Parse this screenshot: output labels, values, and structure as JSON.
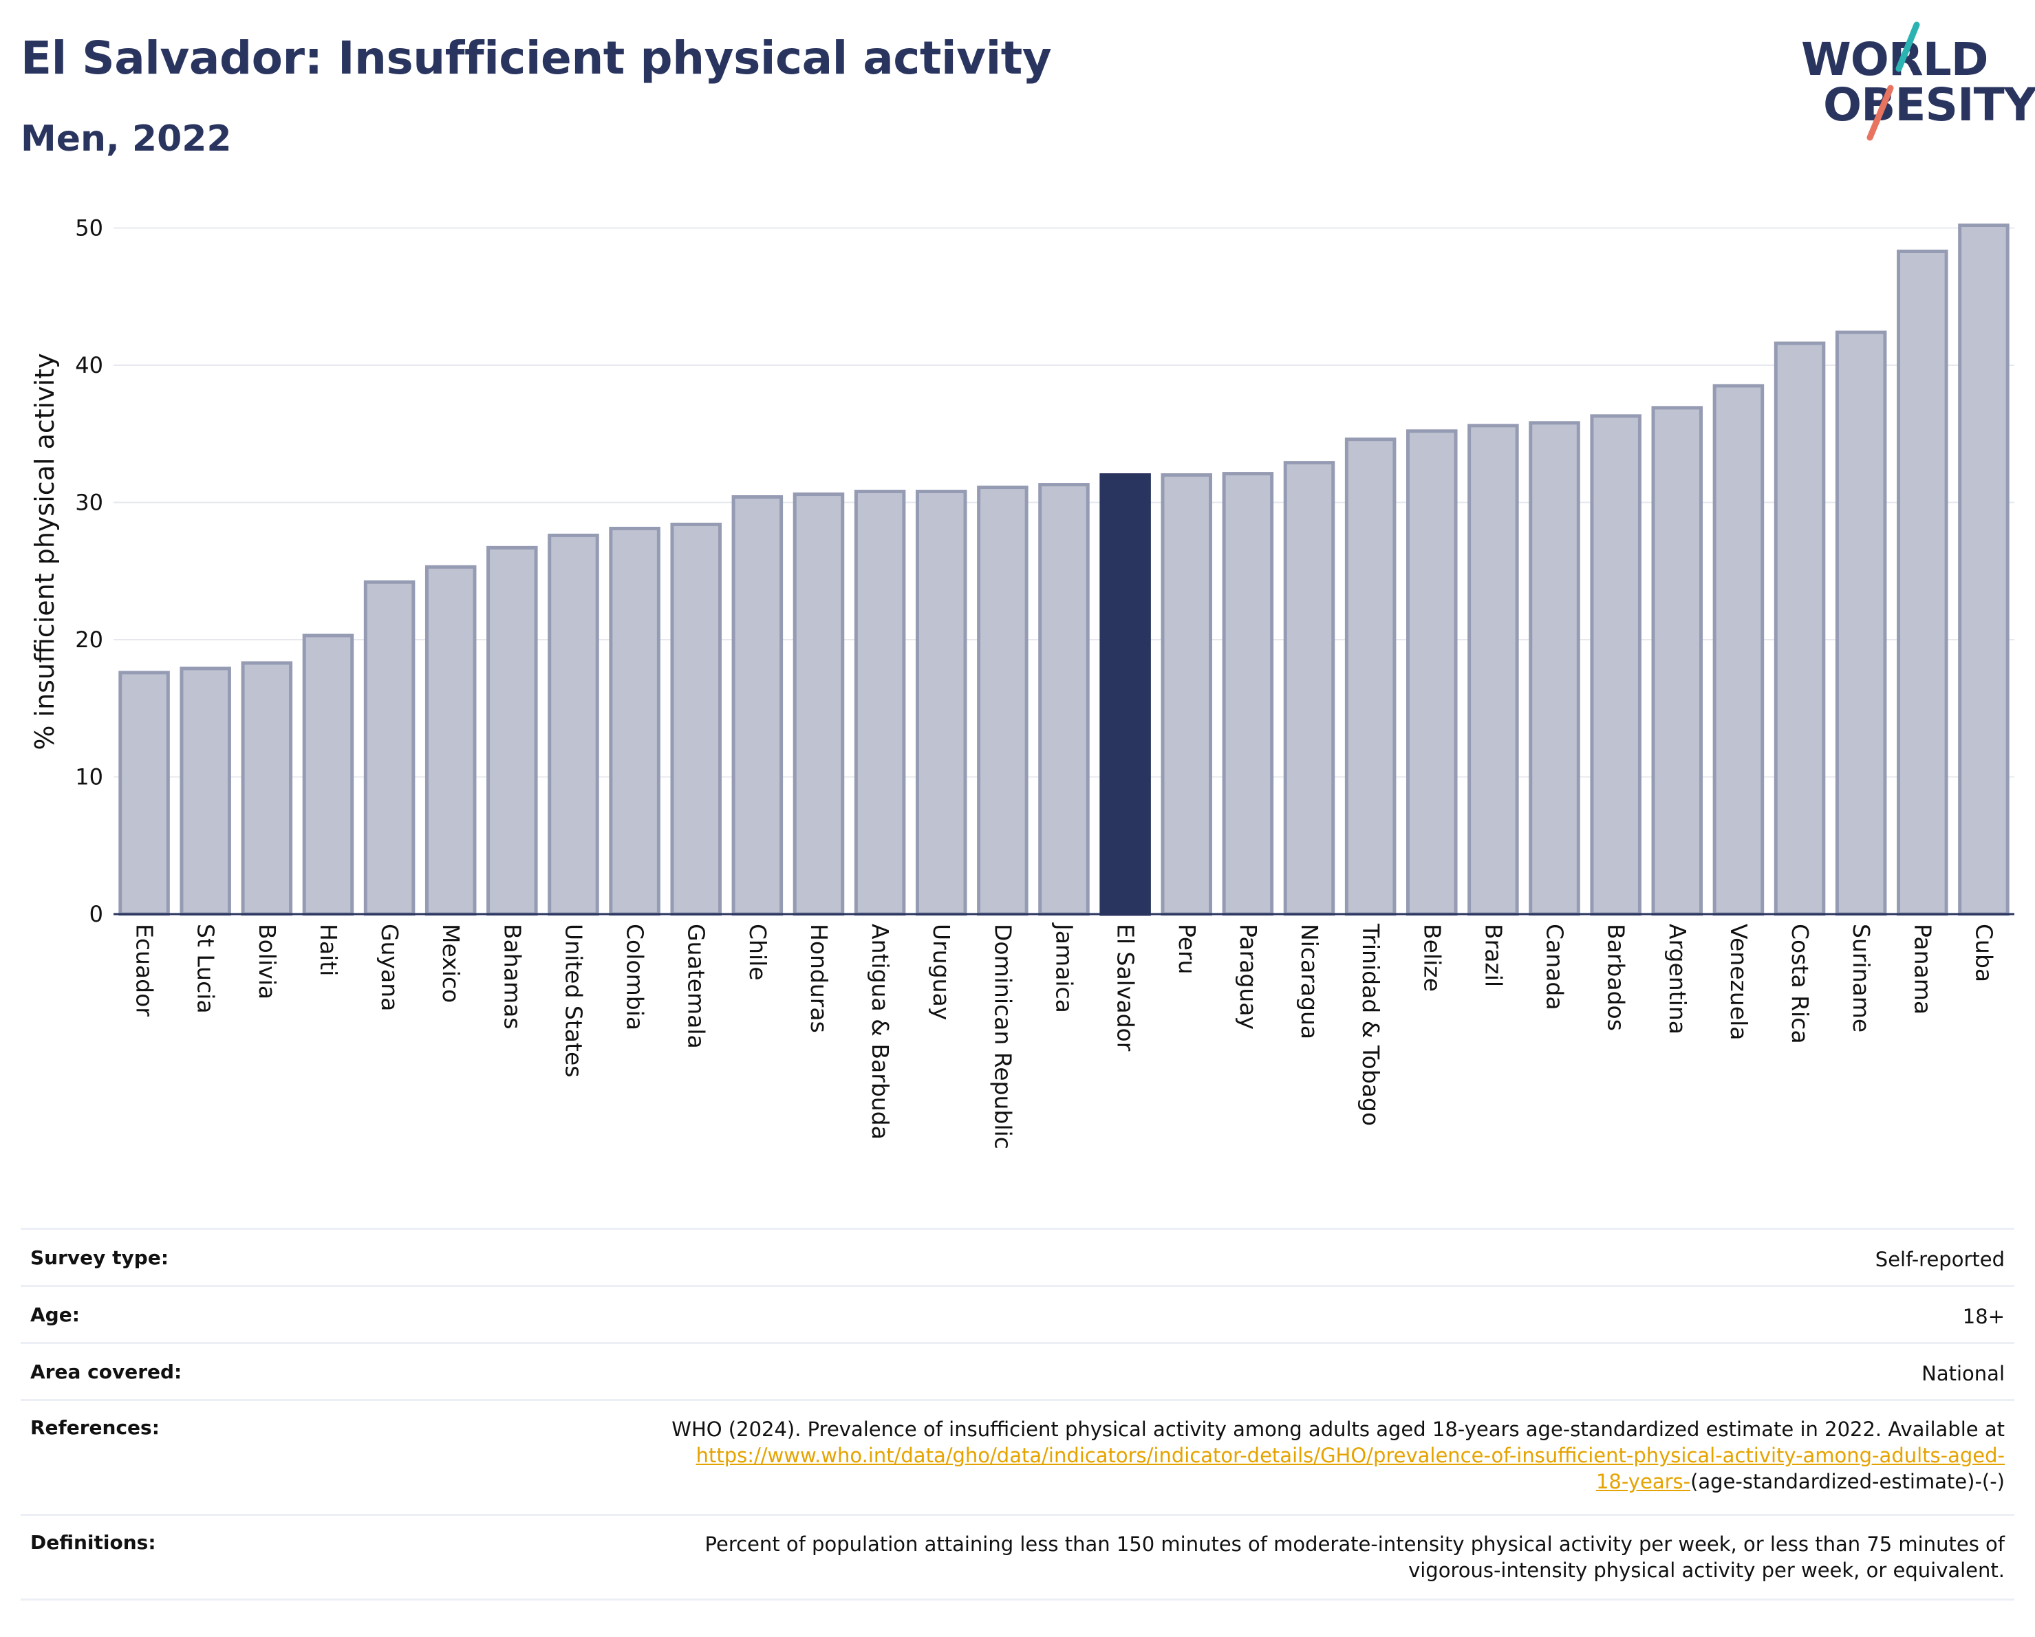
{
  "title": "El Salvador: Insufficient physical activity",
  "subtitle": "Men, 2022",
  "logo": {
    "line1": "WORLD",
    "line2": "OBESITY"
  },
  "colors": {
    "bar": "#bfc3d1",
    "bar_stroke": "#959bb3",
    "highlight": "#2a355f",
    "grid": "#e6e8ee",
    "logo_teal": "#2bb3b1",
    "logo_coral": "#e8735f"
  },
  "chart_data": {
    "type": "bar",
    "ylabel": "% insufficient physical activity",
    "xlabel": "",
    "ylim": [
      0,
      51
    ],
    "yticks": [
      0,
      10,
      20,
      30,
      40,
      50
    ],
    "highlight": "El Salvador",
    "grid": true,
    "categories": [
      "Ecuador",
      "St Lucia",
      "Bolivia",
      "Haiti",
      "Guyana",
      "Mexico",
      "Bahamas",
      "United States",
      "Colombia",
      "Guatemala",
      "Chile",
      "Honduras",
      "Antigua & Barbuda",
      "Uruguay",
      "Dominican Republic",
      "Jamaica",
      "El Salvador",
      "Peru",
      "Paraguay",
      "Nicaragua",
      "Trinidad & Tobago",
      "Belize",
      "Brazil",
      "Canada",
      "Barbados",
      "Argentina",
      "Venezuela",
      "Costa Rica",
      "Suriname",
      "Panama",
      "Cuba"
    ],
    "values": [
      17.6,
      17.9,
      18.3,
      20.3,
      24.2,
      25.3,
      26.7,
      27.6,
      28.1,
      28.4,
      30.4,
      30.6,
      30.8,
      30.8,
      31.1,
      31.3,
      32.0,
      32.0,
      32.1,
      32.9,
      34.6,
      35.2,
      35.6,
      35.8,
      36.3,
      36.9,
      38.5,
      41.6,
      42.4,
      48.3,
      50.2
    ]
  },
  "info": {
    "survey_type_label": "Survey type:",
    "survey_type_value": "Self-reported",
    "age_label": "Age:",
    "age_value": "18+",
    "area_label": "Area covered:",
    "area_value": "National",
    "references_label": "References:",
    "references_text": "WHO (2024). Prevalence of insufficient physical activity among adults aged 18-years age-standardized estimate in 2022. Available at",
    "references_link_line1": "https://www.who.int/data/gho/data/indicators/indicator-details/GHO/prevalence-of-insufficient-physical-activity-among-adults-aged-",
    "references_link_line2": "18-years-",
    "references_suffix": "(age-standardized-estimate)-(-)",
    "definitions_label": "Definitions:",
    "definitions_text": "Percent of population attaining less than 150 minutes of moderate-intensity physical activity per week, or less than 75 minutes of vigorous-intensity physical activity per week, or equivalent."
  }
}
